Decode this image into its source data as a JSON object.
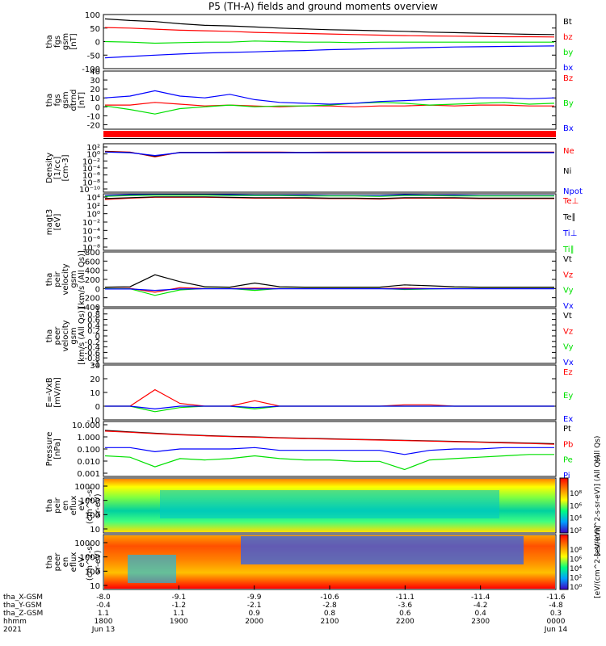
{
  "title": "P5 (TH-A) fields and ground moments overview",
  "colors": {
    "black": "#000000",
    "red": "#ff0000",
    "green": "#00e000",
    "blue": "#0000ff",
    "ecolor_red": "#d20000"
  },
  "chart_data": [
    {
      "type": "line",
      "name": "tha_fgs_gsm_nT",
      "ylabel": [
        "tha",
        "fgs",
        "gsm",
        "[nT]"
      ],
      "ylim": [
        -100,
        100
      ],
      "yticks": [
        100,
        50,
        0,
        -50,
        -100
      ],
      "series": [
        {
          "name": "Bt",
          "color": "black",
          "values": [
            84,
            78,
            74,
            66,
            60,
            58,
            54,
            50,
            47,
            44,
            42,
            40,
            38,
            35,
            33,
            31,
            29,
            27,
            26
          ]
        },
        {
          "name": "bz",
          "color": "red",
          "values": [
            52,
            50,
            46,
            42,
            40,
            38,
            34,
            32,
            30,
            28,
            26,
            24,
            22,
            21,
            20,
            19,
            18,
            18,
            17
          ]
        },
        {
          "name": "by",
          "color": "green",
          "values": [
            0,
            -2,
            -6,
            -4,
            -2,
            -2,
            2,
            0,
            -2,
            -2,
            -4,
            -2,
            -2,
            -2,
            -2,
            -2,
            -2,
            -2,
            -2
          ]
        },
        {
          "name": "bx",
          "color": "blue",
          "values": [
            -60,
            -55,
            -50,
            -46,
            -42,
            -40,
            -38,
            -35,
            -33,
            -30,
            -28,
            -26,
            -24,
            -22,
            -20,
            -19,
            -18,
            -17,
            -16
          ]
        }
      ],
      "legend": [
        "Bt",
        "bz",
        "by",
        "bx"
      ]
    },
    {
      "type": "line",
      "name": "tha_fgs_gsm_dtrnd",
      "ylabel": [
        "tha",
        "fgs",
        "gsm",
        "dtrnd",
        "[nT]"
      ],
      "ylim": [
        -25,
        40
      ],
      "yticks": [
        40,
        30,
        20,
        10,
        0,
        -10,
        -20
      ],
      "series": [
        {
          "name": "Bz",
          "color": "red",
          "values": [
            2,
            2,
            5,
            3,
            1,
            2,
            1,
            0,
            1,
            1,
            0,
            1,
            1,
            2,
            1,
            2,
            2,
            1,
            1
          ]
        },
        {
          "name": "By",
          "color": "green",
          "values": [
            1,
            -3,
            -8,
            -2,
            0,
            2,
            0,
            1,
            1,
            2,
            4,
            5,
            4,
            2,
            3,
            4,
            5,
            3,
            4
          ]
        },
        {
          "name": "Bx",
          "color": "blue",
          "values": [
            10,
            12,
            18,
            12,
            10,
            14,
            8,
            5,
            4,
            3,
            4,
            6,
            7,
            8,
            9,
            10,
            10,
            9,
            10
          ]
        }
      ],
      "legend": [
        "Bz",
        "By",
        "Bx"
      ]
    },
    {
      "type": "line",
      "name": "tha_density",
      "ylabel": [
        "Density",
        "[1/cc]",
        "[cm-3]"
      ],
      "yticks_label": [
        "10²",
        "10⁰",
        "10⁻²",
        "10⁻⁴",
        "10⁻⁶",
        "10⁻⁸",
        "10⁻¹⁰"
      ],
      "ylim_log": [
        -11,
        3
      ],
      "series": [
        {
          "name": "Ne",
          "color": "red",
          "values": [
            0.8,
            0.6,
            -0.8,
            0.5,
            0.5,
            0.6,
            0.6,
            0.6,
            0.5,
            0.6,
            0.6,
            0.6,
            0.6,
            0.6,
            0.6,
            0.6,
            0.6,
            0.6,
            0.6
          ]
        },
        {
          "name": "Ni",
          "color": "black",
          "values": [
            0.7,
            0.5,
            -0.6,
            0.5,
            0.5,
            0.5,
            0.5,
            0.5,
            0.5,
            0.5,
            0.5,
            0.5,
            0.5,
            0.5,
            0.5,
            0.5,
            0.5,
            0.5,
            0.5
          ]
        },
        {
          "name": "Npot",
          "color": "blue",
          "values": [
            0.6,
            0.4,
            -0.4,
            0.4,
            0.4,
            0.4,
            0.4,
            0.4,
            0.4,
            0.4,
            0.4,
            0.4,
            0.4,
            0.4,
            0.4,
            0.4,
            0.4,
            0.4,
            0.4
          ]
        }
      ],
      "legend": [
        "Ne",
        "Ni",
        "Npot"
      ]
    },
    {
      "type": "line",
      "name": "tha_temperature",
      "ylabel": [
        "magt3",
        "[eV]"
      ],
      "yticks_label": [
        "10⁴",
        "10²",
        "10⁰",
        "10⁻²",
        "10⁻⁴",
        "10⁻⁶",
        "10⁻⁸"
      ],
      "ylim_log": [
        -9,
        4
      ],
      "series": [
        {
          "name": "Te⊥",
          "color": "red",
          "values": [
            2.7,
            3.0,
            3.2,
            3.2,
            3.2,
            3.1,
            3.0,
            3.0,
            3.0,
            2.9,
            2.9,
            2.8,
            3.0,
            3.0,
            3.0,
            2.9,
            2.9,
            2.9,
            2.9
          ]
        },
        {
          "name": "Te∥",
          "color": "black",
          "values": [
            2.9,
            3.1,
            3.3,
            3.3,
            3.3,
            3.2,
            3.1,
            3.1,
            3.1,
            3.0,
            3.0,
            2.9,
            3.1,
            3.1,
            3.1,
            3.0,
            3.0,
            3.0,
            3.0
          ]
        },
        {
          "name": "Ti⊥",
          "color": "blue",
          "values": [
            3.6,
            3.8,
            3.9,
            3.8,
            3.8,
            3.8,
            3.7,
            3.7,
            3.7,
            3.6,
            3.6,
            3.6,
            3.8,
            3.7,
            3.7,
            3.6,
            3.6,
            3.6,
            3.6
          ]
        },
        {
          "name": "Ti∥",
          "color": "green",
          "values": [
            3.4,
            3.6,
            3.7,
            3.7,
            3.7,
            3.6,
            3.6,
            3.6,
            3.5,
            3.5,
            3.5,
            3.4,
            3.6,
            3.6,
            3.5,
            3.5,
            3.5,
            3.5,
            3.5
          ]
        }
      ],
      "legend": [
        "Te⊥",
        "Te∥",
        "Ti⊥",
        "Ti∥"
      ]
    },
    {
      "type": "line",
      "name": "tha_peir_velocity",
      "ylabel": [
        "tha",
        "peir",
        "velocity",
        "gsm",
        "[km/s (All Qs)]"
      ],
      "ylim": [
        -400,
        800
      ],
      "yticks": [
        800,
        600,
        400,
        200,
        0,
        -200,
        -400
      ],
      "series": [
        {
          "name": "Vt",
          "color": "black",
          "values": [
            30,
            40,
            300,
            150,
            40,
            30,
            120,
            40,
            30,
            30,
            30,
            30,
            80,
            60,
            40,
            30,
            30,
            30,
            30
          ]
        },
        {
          "name": "Vz",
          "color": "red",
          "values": [
            0,
            5,
            -80,
            20,
            0,
            0,
            10,
            0,
            0,
            0,
            0,
            0,
            10,
            0,
            0,
            0,
            0,
            0,
            0
          ]
        },
        {
          "name": "Vy",
          "color": "green",
          "values": [
            0,
            -5,
            -150,
            -30,
            0,
            0,
            -40,
            0,
            0,
            0,
            0,
            0,
            -20,
            -10,
            0,
            0,
            0,
            0,
            0
          ]
        },
        {
          "name": "Vx",
          "color": "blue",
          "values": [
            -10,
            -10,
            -40,
            -10,
            -5,
            -5,
            -10,
            -5,
            -5,
            -5,
            -5,
            -5,
            -10,
            -5,
            -5,
            -5,
            -5,
            -5,
            -5
          ]
        }
      ],
      "legend": [
        "Vt",
        "Vz",
        "Vy",
        "Vx"
      ]
    },
    {
      "type": "line",
      "name": "tha_peer_velocity",
      "ylabel": [
        "tha",
        "peer",
        "velocity",
        "gsm",
        "[km/s (All Qs)]"
      ],
      "ylim": [
        -1.0,
        1.0
      ],
      "yticks": [
        1.0,
        0.8,
        0.6,
        0.4,
        0.2,
        0.0,
        -0.2,
        -0.4,
        -0.6,
        -0.8,
        -1.0
      ],
      "series": [],
      "legend": [
        "Vt",
        "Vz",
        "Vy",
        "Vx"
      ]
    },
    {
      "type": "line",
      "name": "tha_efield",
      "ylabel": [
        "E=-VxB",
        "[mV/m]"
      ],
      "ylim": [
        -10,
        30
      ],
      "yticks": [
        30,
        20,
        10,
        0,
        -10
      ],
      "series": [
        {
          "name": "Ez",
          "color": "red",
          "values": [
            0,
            0,
            12,
            2,
            0,
            0,
            4,
            0,
            0,
            0,
            0,
            0,
            1,
            1,
            0,
            0,
            0,
            0,
            0
          ]
        },
        {
          "name": "Ey",
          "color": "green",
          "values": [
            0,
            0,
            -4,
            -1,
            0,
            0,
            -2,
            0,
            0,
            0,
            0,
            0,
            0,
            0,
            0,
            0,
            0,
            0,
            0
          ]
        },
        {
          "name": "Ex",
          "color": "blue",
          "values": [
            0,
            0,
            -2,
            0,
            0,
            0,
            -1,
            0,
            0,
            0,
            0,
            0,
            0,
            0,
            0,
            0,
            0,
            0,
            0
          ]
        }
      ],
      "legend": [
        "Ez",
        "Ey",
        "Ex"
      ]
    },
    {
      "type": "line",
      "name": "tha_pressure",
      "ylabel": [
        "Pressure",
        "[nPa]"
      ],
      "yticks_label": [
        "10.000",
        "1.000",
        "0.100",
        "0.010",
        "0.001"
      ],
      "ylim_log": [
        -3,
        1
      ],
      "series": [
        {
          "name": "Pt",
          "color": "black",
          "values": [
            0.35,
            0.25,
            0.15,
            0.05,
            -0.02,
            -0.08,
            -0.12,
            -0.18,
            -0.22,
            -0.26,
            -0.3,
            -0.33,
            -0.37,
            -0.41,
            -0.45,
            -0.49,
            -0.53,
            -0.57,
            -0.62
          ]
        },
        {
          "name": "Pb",
          "color": "red",
          "values": [
            0.3,
            0.22,
            0.12,
            0.03,
            -0.04,
            -0.1,
            -0.14,
            -0.2,
            -0.24,
            -0.28,
            -0.32,
            -0.35,
            -0.39,
            -0.43,
            -0.47,
            -0.51,
            -0.56,
            -0.6,
            -0.66
          ]
        },
        {
          "name": "Pe",
          "color": "green",
          "values": [
            -1.5,
            -1.6,
            -2.3,
            -1.7,
            -1.8,
            -1.7,
            -1.5,
            -1.7,
            -1.8,
            -1.8,
            -1.9,
            -1.9,
            -2.5,
            -1.8,
            -1.7,
            -1.6,
            -1.5,
            -1.4,
            -1.4
          ]
        },
        {
          "name": "Pi",
          "color": "blue",
          "values": [
            -0.9,
            -0.9,
            -1.2,
            -1.0,
            -1.0,
            -1.0,
            -0.9,
            -1.1,
            -1.1,
            -1.1,
            -1.1,
            -1.1,
            -1.4,
            -1.1,
            -1.0,
            -1.0,
            -0.9,
            -0.9,
            -0.9
          ]
        }
      ],
      "legend": [
        "Pt",
        "Pb",
        "Pe",
        "Pi"
      ],
      "legend_side_label": "(All Qs)"
    },
    {
      "type": "heatmap",
      "name": "tha_peir_en_eflux",
      "ylabel": [
        "tha",
        "peir",
        "en",
        "eflux",
        "eV",
        "(cm^2-s-",
        "sr-eV)"
      ],
      "yticks": [
        10000,
        1000,
        100,
        10
      ],
      "colorbar_ticks": [
        "10⁸",
        "10⁶",
        "10⁴",
        "10²"
      ],
      "colorbar_label": "[eV/(cm^2-s-sr-eV)] (All Qs)"
    },
    {
      "type": "heatmap",
      "name": "tha_peer_en_eflux",
      "ylabel": [
        "tha",
        "peer",
        "en",
        "eflux",
        "eV",
        "(cm^2-s-",
        "sr-eV)"
      ],
      "yticks": [
        10000,
        1000,
        100,
        10
      ],
      "colorbar_ticks": [
        "10⁸",
        "10⁶",
        "10⁴",
        "10²",
        "10⁰"
      ],
      "colorbar_label": "[eV/(cm^2-s-sr-eV)]"
    }
  ],
  "xaxis": {
    "ticks": [
      {
        "x": "-8.0",
        "y": "-0.4",
        "z": "1.1",
        "hhmm": "1800",
        "date": "Jun 13"
      },
      {
        "x": "-9.1",
        "y": "-1.2",
        "z": "1.1",
        "hhmm": "1900",
        "date": ""
      },
      {
        "x": "-9.9",
        "y": "-2.1",
        "z": "0.9",
        "hhmm": "2000",
        "date": ""
      },
      {
        "x": "-10.6",
        "y": "-2.8",
        "z": "0.8",
        "hhmm": "2100",
        "date": ""
      },
      {
        "x": "-11.1",
        "y": "-3.6",
        "z": "0.6",
        "hhmm": "2200",
        "date": ""
      },
      {
        "x": "-11.4",
        "y": "-4.2",
        "z": "0.4",
        "hhmm": "2300",
        "date": ""
      },
      {
        "x": "-11.6",
        "y": "-4.8",
        "z": "0.3",
        "hhmm": "0000",
        "date": "Jun 14"
      }
    ],
    "row_labels": [
      "tha_X-GSM",
      "tha_Y-GSM",
      "tha_Z-GSM",
      "hhmm",
      "2021"
    ]
  }
}
